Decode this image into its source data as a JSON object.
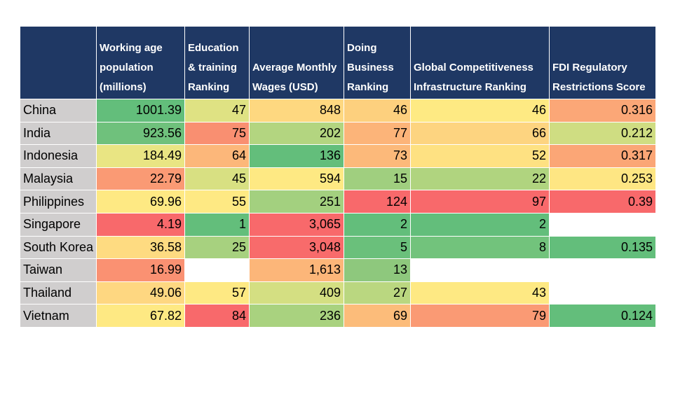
{
  "table": {
    "header": [
      null,
      "Working age population (millions)",
      "Education & training Ranking",
      "Average Monthly Wages (USD)",
      "Doing Business Ranking",
      "Global Competitiveness Infrastructure Ranking",
      "FDI Regulatory Restrictions Score"
    ],
    "header_color": "#1f3864",
    "label_color": "#d0cece",
    "rows": [
      {
        "label": "China",
        "cells": [
          "1001.39",
          "47",
          "848",
          "46",
          "46",
          "0.316"
        ],
        "colors": [
          "#63be7b",
          "#dfe283",
          "#fed880",
          "#fdd07e",
          "#feea83",
          "#fba777"
        ]
      },
      {
        "label": "India",
        "cells": [
          "923.56",
          "75",
          "202",
          "77",
          "66",
          "0.212"
        ],
        "colors": [
          "#6fc17c",
          "#f98f71",
          "#b3d580",
          "#fcb479",
          "#fdd480",
          "#cfdd82"
        ]
      },
      {
        "label": "Indonesia",
        "cells": [
          "184.49",
          "64",
          "136",
          "73",
          "52",
          "0.317"
        ],
        "colors": [
          "#e9e583",
          "#fcb77a",
          "#63be7b",
          "#fcb97a",
          "#fee182",
          "#fba676"
        ]
      },
      {
        "label": "Malaysia",
        "cells": [
          "22.79",
          "45",
          "594",
          "15",
          "22",
          "0.253"
        ],
        "colors": [
          "#fa9a74",
          "#d8e082",
          "#fee983",
          "#a0cf7f",
          "#b0d47f",
          "#fee683"
        ]
      },
      {
        "label": "Philippines",
        "cells": [
          "69.96",
          "55",
          "251",
          "124",
          "97",
          "0.39"
        ],
        "colors": [
          "#fee983",
          "#fee983",
          "#a3d07f",
          "#f8696b",
          "#f8696b",
          "#f8696b"
        ]
      },
      {
        "label": "Singapore",
        "cells": [
          "4.19",
          "1",
          "3,065",
          "2",
          "2",
          null
        ],
        "colors": [
          "#f8696b",
          "#63be7b",
          "#f8696b",
          "#63be7b",
          "#63be7b",
          null
        ]
      },
      {
        "label": "South Korea",
        "cells": [
          "36.58",
          "25",
          "3,048",
          "5",
          "8",
          "0.135"
        ],
        "colors": [
          "#fedb81",
          "#a7d17f",
          "#f86b6b",
          "#6ac07b",
          "#72c37c",
          "#63be7b"
        ]
      },
      {
        "label": "Taiwan",
        "cells": [
          "16.99",
          null,
          "1,613",
          "13",
          null,
          null
        ],
        "colors": [
          "#fa9172",
          null,
          "#fcb679",
          "#8ec87d",
          null,
          null
        ]
      },
      {
        "label": "Thailand",
        "cells": [
          "49.06",
          "57",
          "409",
          "27",
          "43",
          null
        ],
        "colors": [
          "#fed781",
          "#fee983",
          "#d4df82",
          "#bad780",
          "#fee983",
          null
        ]
      },
      {
        "label": "Vietnam",
        "cells": [
          "67.82",
          "84",
          "236",
          "69",
          "79",
          "0.124"
        ],
        "colors": [
          "#fee983",
          "#f8696b",
          "#a9d27f",
          "#fcbc7a",
          "#fa9a74",
          "#63be7b"
        ]
      }
    ]
  }
}
